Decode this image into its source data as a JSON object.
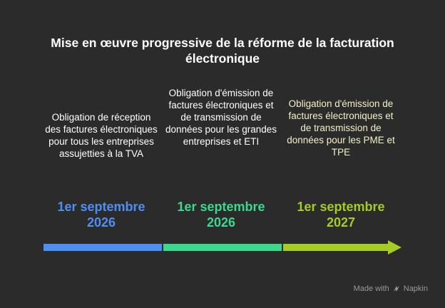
{
  "title": "Mise en œuvre progressive de la réforme de la facturation électronique",
  "milestones": [
    {
      "description": "Obligation de réception des factures électroniques pour tous les entreprises assujetties à la TVA",
      "date": "1er septembre\n2026",
      "color": "#4f8ff2"
    },
    {
      "description": "Obligation d'émission de factures électroniques et de transmission de données pour les grandes entreprises et ETI",
      "date": "1er septembre\n2026",
      "color": "#3bd88e"
    },
    {
      "description": "Obligation d'émission de factures électroniques et de transmission de données pour les PME et TPE",
      "date": "1er septembre\n2027",
      "color": "#a4cc24"
    }
  ],
  "colors": {
    "background": "#2b2b2b",
    "text": "#ffffff",
    "desc_text_1": "#ffffff",
    "desc_text_2": "#ffffff",
    "desc_text_3": "#f4f1c6"
  },
  "footer": {
    "made_with": "Made with",
    "brand": "Napkin",
    "icon": "napkin-logo-icon"
  }
}
